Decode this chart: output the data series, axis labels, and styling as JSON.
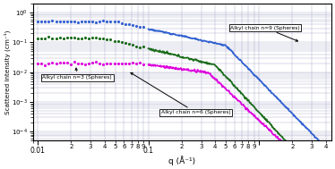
{
  "xlabel": "q (Å⁻¹)",
  "ylabel": "Scattered intensity (cm⁻¹)",
  "xlim_low": 0.009,
  "xlim_high": 4.5,
  "ylim_low": 5e-05,
  "ylim_high": 2.0,
  "colors": {
    "n9": "#3060d0",
    "n6": "#1a6b1a",
    "n3": "#dd00dd"
  },
  "grid_color": "#aaaacc",
  "ann_n3_text": "Alkyl chain n=3 (Spheres)",
  "ann_n6_text": "Alkyl chain n=6 (Spheres)",
  "ann_n9_text": "Alkyl chain n=9 (Spheres)"
}
